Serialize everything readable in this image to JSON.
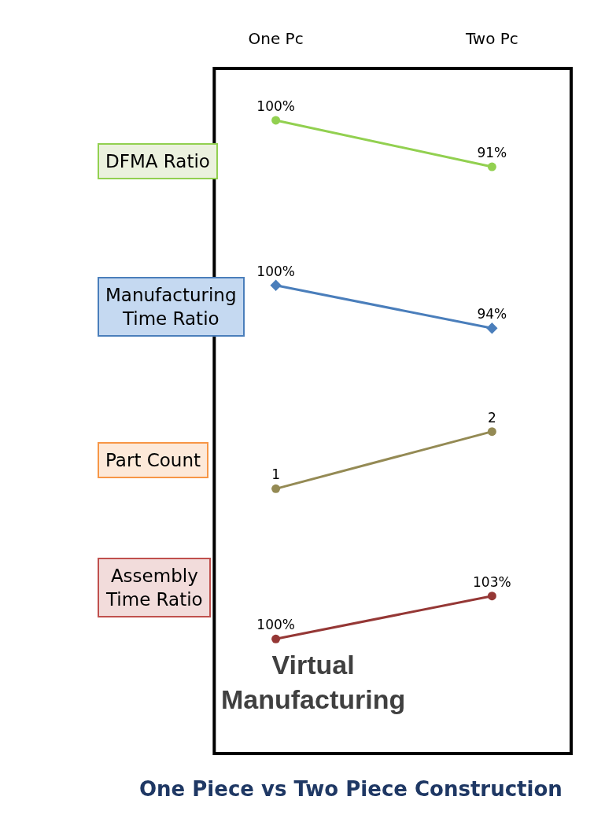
{
  "chart_data": [
    {
      "type": "line",
      "categories": [
        "One Pc",
        "Two Pc"
      ],
      "ylabel": "DFMA Ratio",
      "tick_labels": "x",
      "marker": "circle",
      "color": "#92d050",
      "values": [
        100,
        91
      ],
      "value_labels": [
        "100%",
        "91%"
      ]
    },
    {
      "type": "line",
      "categories": [
        null,
        null
      ],
      "ylabel": "Manufacturing Time Ratio",
      "tick_labels": false,
      "marker": "diamond",
      "color": "#4a7ebb",
      "values": [
        100,
        94
      ],
      "value_labels": [
        "100%",
        "94%"
      ]
    },
    {
      "type": "line",
      "categories": [
        null,
        null
      ],
      "ylabel": "Part Count",
      "tick_labels": false,
      "marker": "circle",
      "color": "#948a54",
      "values": [
        1,
        2
      ],
      "data_labels": true
    },
    {
      "type": "line",
      "categories": [
        null,
        null
      ],
      "ylabel": "Assembly Time Ratio",
      "tick_labels": false,
      "marker": "circle",
      "color": "#953735",
      "values": [
        100,
        103
      ],
      "value_labels": [
        "100%",
        "103%"
      ],
      "title": "One Piece vs Two Piece Construction",
      "annotations": [
        "Virtual Manufacturing"
      ]
    }
  ]
}
